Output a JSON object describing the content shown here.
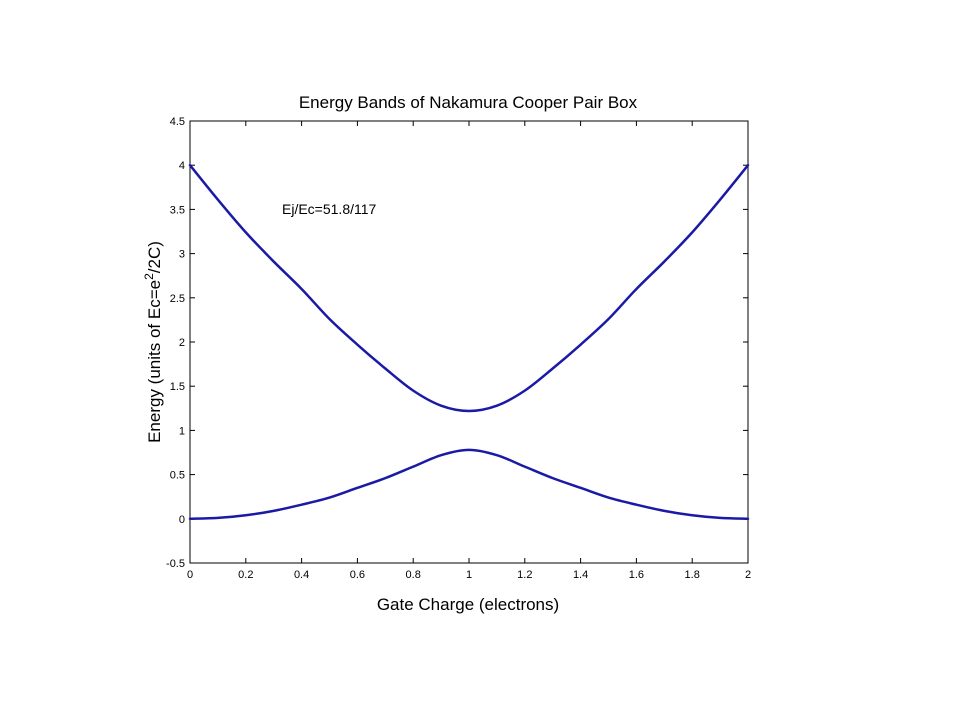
{
  "chart_data": {
    "type": "line",
    "title": "Energy Bands of Nakamura Cooper Pair Box",
    "xlabel": "Gate Charge (electrons)",
    "ylabel_parts": [
      "Energy (units of Ec=e",
      "2",
      "/2C)"
    ],
    "annotation": "Ej/Ec=51.8/117",
    "xlim": [
      0,
      2
    ],
    "ylim": [
      -0.5,
      4.5
    ],
    "x_ticks": [
      "0",
      "0.2",
      "0.4",
      "0.6",
      "0.8",
      "1",
      "1.2",
      "1.4",
      "1.6",
      "1.8",
      "2"
    ],
    "y_ticks": [
      "-0.5",
      "0",
      "0.5",
      "1",
      "1.5",
      "2",
      "2.5",
      "3",
      "3.5",
      "4",
      "4.5"
    ],
    "grid": false,
    "line_color": "#1a1aa6",
    "series": [
      {
        "x": [
          0,
          0.1,
          0.2,
          0.3,
          0.4,
          0.5,
          0.6,
          0.7,
          0.8,
          0.9,
          1.0,
          1.1,
          1.2,
          1.3,
          1.4,
          1.5,
          1.6,
          1.7,
          1.8,
          1.9,
          2.0
        ],
        "values": [
          0.0,
          0.01,
          0.04,
          0.09,
          0.16,
          0.24,
          0.35,
          0.46,
          0.59,
          0.72,
          0.78,
          0.72,
          0.59,
          0.46,
          0.35,
          0.24,
          0.16,
          0.09,
          0.04,
          0.01,
          0.0
        ]
      },
      {
        "x": [
          0,
          0.1,
          0.2,
          0.3,
          0.4,
          0.5,
          0.6,
          0.7,
          0.8,
          0.9,
          1.0,
          1.1,
          1.2,
          1.3,
          1.4,
          1.5,
          1.6,
          1.7,
          1.8,
          1.9,
          2.0
        ],
        "values": [
          4.0,
          3.61,
          3.24,
          2.91,
          2.6,
          2.26,
          1.97,
          1.7,
          1.45,
          1.28,
          1.22,
          1.28,
          1.45,
          1.7,
          1.97,
          2.26,
          2.6,
          2.91,
          3.24,
          3.61,
          4.0
        ]
      }
    ]
  }
}
